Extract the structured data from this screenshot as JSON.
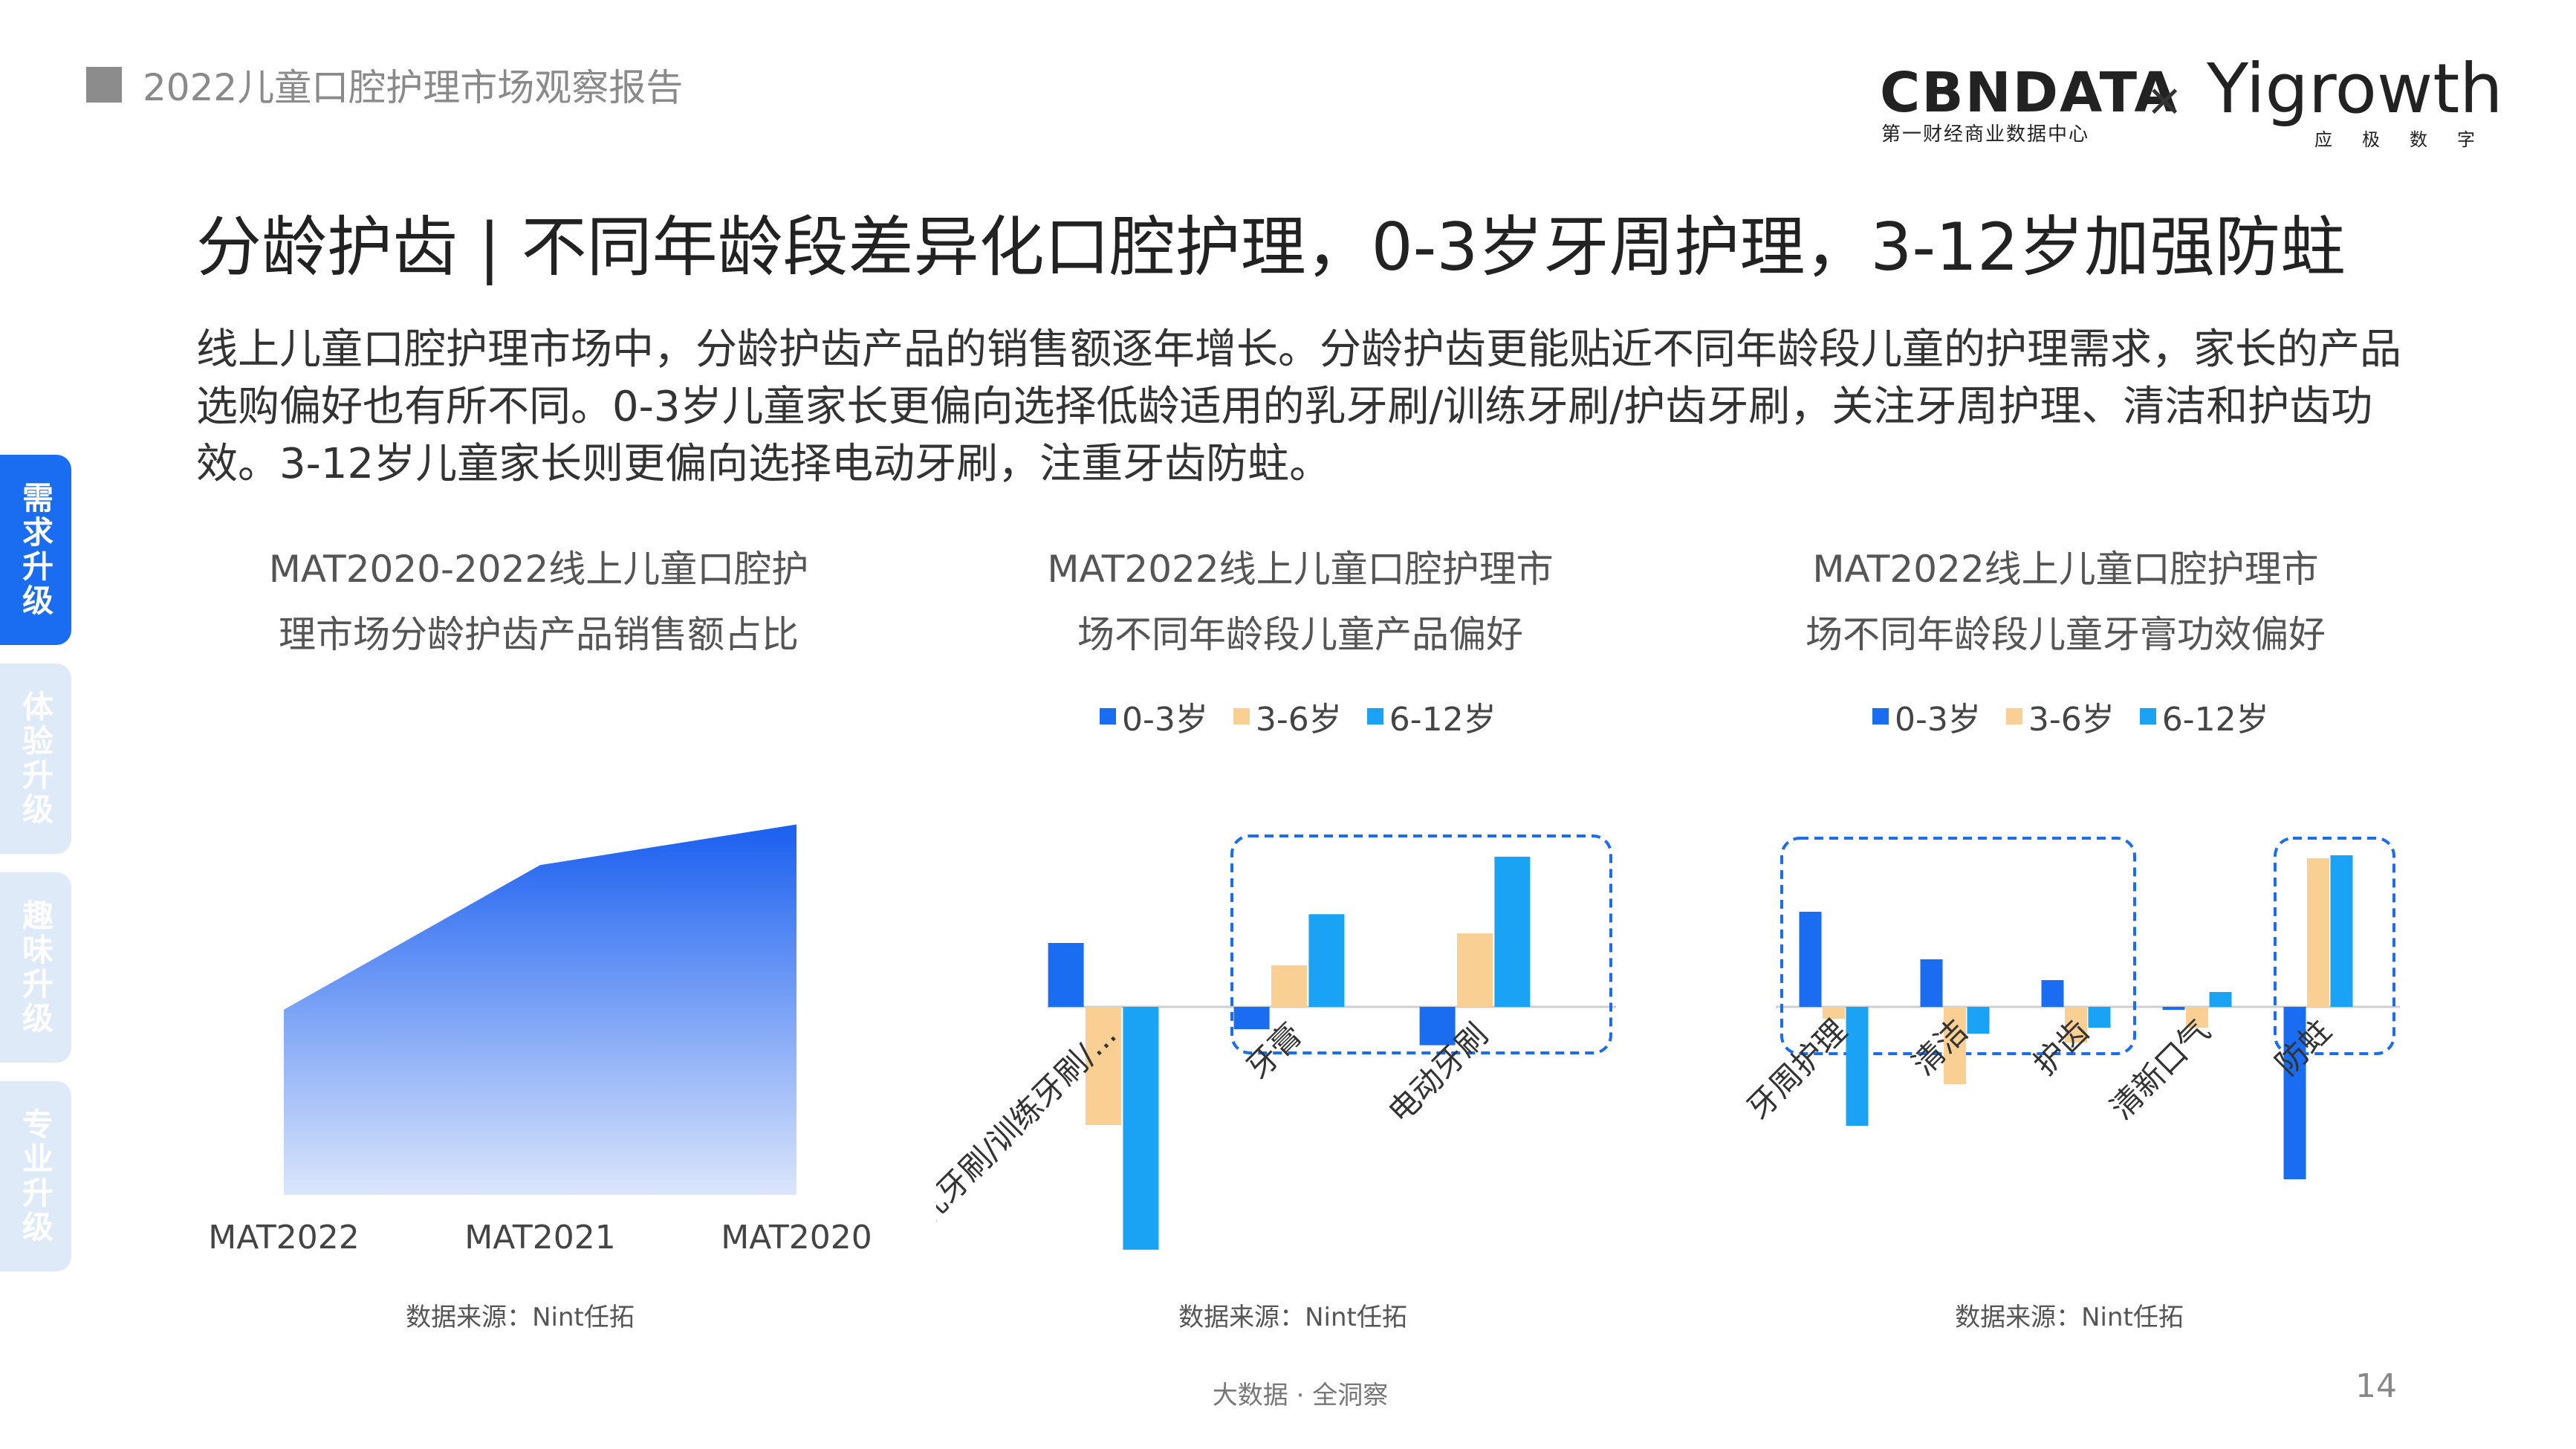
{
  "header": {
    "title": "2022儿童口腔护理市场观察报告"
  },
  "logos": {
    "cbndata_main": "CBNDATA",
    "cbndata_sub": "第一财经商业数据中心",
    "separator": "×",
    "yigrowth_main": "Yigrowth",
    "yigrowth_sub": "应极数字"
  },
  "main_title": "分龄护齿 | 不同年龄段差异化口腔护理，0-3岁牙周护理，3-12岁加强防蛀",
  "intro": "线上儿童口腔护理市场中，分龄护齿产品的销售额逐年增长。分龄护齿更能贴近不同年龄段儿童的护理需求，家长的产品选购偏好也有所不同。0-3岁儿童家长更偏向选择低龄适用的乳牙刷/训练牙刷/护齿牙刷，关注牙周护理、清洁和护齿功效。3-12岁儿童家长则更偏向选择电动牙刷，注重牙齿防蛀。",
  "side_tabs": [
    {
      "label": "需求升级",
      "active": true
    },
    {
      "label": "体验升级",
      "active": false
    },
    {
      "label": "趣味升级",
      "active": false
    },
    {
      "label": "专业升级",
      "active": false
    }
  ],
  "colors": {
    "age_0_3": "#1a6cf0",
    "age_3_6": "#f9cf94",
    "age_6_12": "#1aa3f5",
    "area_top": "#1a5ff0",
    "area_bottom": "#dbe6fb",
    "dashed_box": "#1a6cf0"
  },
  "chart_data": [
    {
      "type": "area",
      "title_line1": "MAT2020-2022线上儿童口腔护",
      "title_line2": "理市场分龄护齿产品销售额占比",
      "categories": [
        "MAT2022",
        "MAT2021",
        "MAT2020"
      ],
      "values": [
        0.41,
        0.73,
        0.82
      ],
      "ylim": [
        0,
        1
      ],
      "source": "数据来源：Nint任拓"
    },
    {
      "type": "bar",
      "title_line1": "MAT2022线上儿童口腔护理市",
      "title_line2": "场不同年龄段儿童产品偏好",
      "legend": [
        "0-3岁",
        "3-6岁",
        "6-12岁"
      ],
      "categories": [
        "乳牙刷/训练牙刷/...",
        "牙膏",
        "电动牙刷"
      ],
      "series": [
        {
          "name": "0-3岁",
          "values": [
            1.0,
            -0.35,
            -0.6
          ]
        },
        {
          "name": "3-6岁",
          "values": [
            -1.85,
            0.65,
            1.15
          ]
        },
        {
          "name": "6-12岁",
          "values": [
            -3.8,
            1.45,
            2.35
          ]
        }
      ],
      "ylim": [
        -4.0,
        3.0
      ],
      "highlight_categories": [
        1,
        2
      ],
      "source": "数据来源：Nint任拓"
    },
    {
      "type": "bar",
      "title_line1": "MAT2022线上儿童口腔护理市",
      "title_line2": "场不同年龄段儿童牙膏功效偏好",
      "legend": [
        "0-3岁",
        "3-6岁",
        "6-12岁"
      ],
      "categories": [
        "牙周护理",
        "清洁",
        "护齿",
        "清新口气",
        "防蛀"
      ],
      "series": [
        {
          "name": "0-3岁",
          "values": [
            1.6,
            0.8,
            0.45,
            -0.05,
            -2.9
          ]
        },
        {
          "name": "3-6岁",
          "values": [
            -0.2,
            -1.3,
            -0.6,
            -0.35,
            2.5
          ]
        },
        {
          "name": "6-12岁",
          "values": [
            -2.0,
            -0.45,
            -0.35,
            0.25,
            2.55
          ]
        }
      ],
      "ylim": [
        -3.2,
        3.0
      ],
      "highlight_categories": [
        [
          0,
          2
        ],
        [
          4,
          4
        ]
      ],
      "source": "数据来源：Nint任拓"
    }
  ],
  "footer": {
    "center": "大数据 · 全洞察",
    "page": "14"
  }
}
